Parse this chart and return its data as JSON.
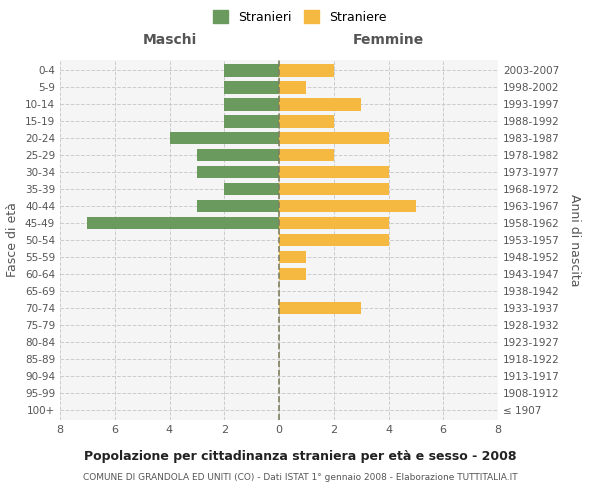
{
  "age_groups": [
    "100+",
    "95-99",
    "90-94",
    "85-89",
    "80-84",
    "75-79",
    "70-74",
    "65-69",
    "60-64",
    "55-59",
    "50-54",
    "45-49",
    "40-44",
    "35-39",
    "30-34",
    "25-29",
    "20-24",
    "15-19",
    "10-14",
    "5-9",
    "0-4"
  ],
  "birth_years": [
    "≤ 1907",
    "1908-1912",
    "1913-1917",
    "1918-1922",
    "1923-1927",
    "1928-1932",
    "1933-1937",
    "1938-1942",
    "1943-1947",
    "1948-1952",
    "1953-1957",
    "1958-1962",
    "1963-1967",
    "1968-1972",
    "1973-1977",
    "1978-1982",
    "1983-1987",
    "1988-1992",
    "1993-1997",
    "1998-2002",
    "2003-2007"
  ],
  "males": [
    0,
    0,
    0,
    0,
    0,
    0,
    0,
    0,
    0,
    0,
    0,
    7,
    3,
    2,
    3,
    3,
    4,
    2,
    2,
    2,
    2
  ],
  "females": [
    0,
    0,
    0,
    0,
    0,
    0,
    3,
    0,
    1,
    1,
    4,
    4,
    5,
    4,
    4,
    2,
    4,
    2,
    3,
    1,
    2
  ],
  "male_color": "#6a9a5e",
  "female_color": "#f5b942",
  "grid_color": "#cccccc",
  "center_line_color": "#808060",
  "bg_color": "#f5f5f5",
  "bar_height": 0.75,
  "xlim": 8,
  "title_main": "Popolazione per cittadinanza straniera per età e sesso - 2008",
  "title_sub": "COMUNE DI GRANDOLA ED UNITI (CO) - Dati ISTAT 1° gennaio 2008 - Elaborazione TUTTITALIA.IT",
  "legend_male": "Stranieri",
  "legend_female": "Straniere",
  "xlabel_left": "Maschi",
  "xlabel_right": "Femmine",
  "ylabel_left": "Fasce di età",
  "ylabel_right": "Anni di nascita"
}
